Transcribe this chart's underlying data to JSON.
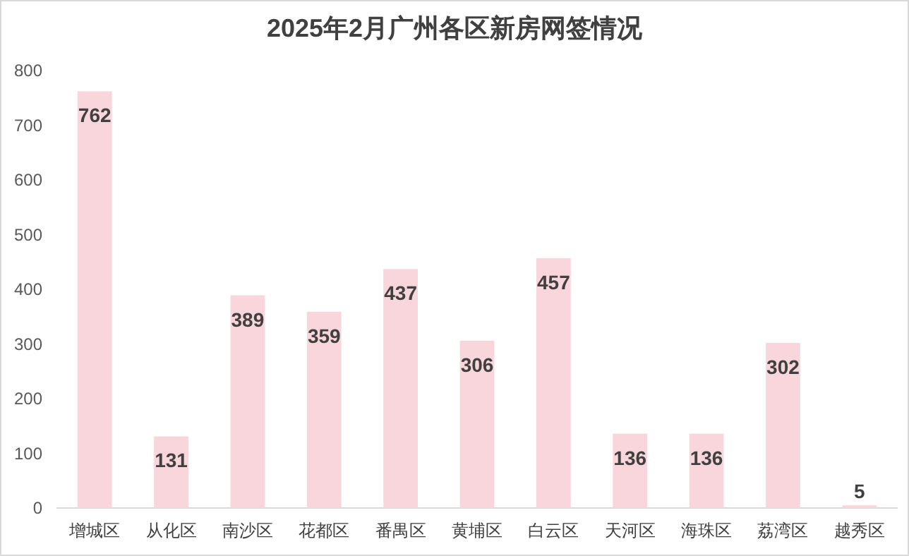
{
  "chart_data": {
    "type": "bar",
    "title": "2025年2月广州各区新房网签情况",
    "categories": [
      "增城区",
      "从化区",
      "南沙区",
      "花都区",
      "番禺区",
      "黄埔区",
      "白云区",
      "天河区",
      "海珠区",
      "荔湾区",
      "越秀区"
    ],
    "values": [
      762,
      131,
      389,
      359,
      437,
      306,
      457,
      136,
      136,
      302,
      5
    ],
    "color": "#f9d6dc",
    "ylim": [
      0,
      800
    ],
    "yticks": [
      0,
      100,
      200,
      300,
      400,
      500,
      600,
      700,
      800
    ],
    "data_labels": true,
    "grid": false
  }
}
